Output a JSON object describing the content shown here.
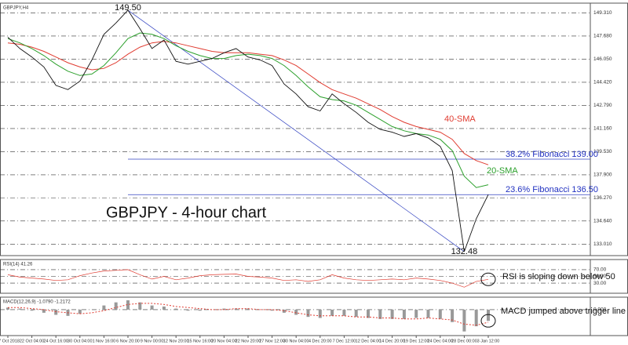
{
  "chart_data": [
    {
      "type": "line",
      "symbol": "GBPJPY,H4",
      "title": "GBPJPY - 4-hour chart",
      "peak_label": "149.50",
      "trough_label": "132.48",
      "categories": [
        "17 Oct 2018",
        null,
        "22 Oct 04:00",
        null,
        "24 Oct 16:00",
        null,
        "30 Oct 04:00",
        null,
        "1 Nov 16:00",
        null,
        "6 Nov 20:00",
        null,
        "9 Nov 00:00",
        null,
        "12 Nov 20:00",
        null,
        "15 Nov 16:00",
        null,
        "20 Nov 04:00",
        null,
        "22 Nov 20:00",
        null,
        "27 Nov 12:00",
        null,
        "30 Nov 04:00",
        null,
        "4 Dec 20:00",
        null,
        "7 Dec 12:00",
        null,
        "12 Dec 04:00",
        null,
        "14 Dec 20:00",
        null,
        "19 Dec 12:00",
        null,
        "24 Dec 04:00",
        null,
        "28 Dec 00:00",
        null,
        "3 Jan 12:00"
      ],
      "series": [
        {
          "color": "#111111",
          "values": [
            147.6,
            146.8,
            146.2,
            145.5,
            144.2,
            143.9,
            144.5,
            146.0,
            147.8,
            148.6,
            149.5,
            148.2,
            146.8,
            147.4,
            145.9,
            145.7,
            145.9,
            146.1,
            146.5,
            146.8,
            146.2,
            146.0,
            145.6,
            144.3,
            143.6,
            142.7,
            142.4,
            143.6,
            142.9,
            142.3,
            141.6,
            141.1,
            140.9,
            140.6,
            140.8,
            140.5,
            139.9,
            138.2,
            132.48,
            134.8,
            136.5
          ]
        },
        {
          "name": "20-SMA",
          "color": "#2ca02c",
          "values": [
            147.5,
            147.2,
            146.8,
            146.3,
            145.7,
            145.2,
            144.9,
            145.0,
            145.6,
            146.5,
            147.5,
            147.9,
            147.8,
            147.5,
            147.0,
            146.6,
            146.3,
            146.1,
            146.1,
            146.3,
            146.4,
            146.3,
            146.1,
            145.6,
            144.9,
            144.1,
            143.4,
            143.2,
            143.1,
            142.8,
            142.3,
            141.8,
            141.3,
            141.0,
            140.8,
            140.7,
            140.4,
            139.6,
            137.8,
            137.0,
            137.2
          ]
        },
        {
          "name": "40-SMA",
          "color": "#e03c31",
          "values": [
            147.2,
            147.1,
            146.9,
            146.6,
            146.2,
            145.8,
            145.5,
            145.3,
            145.4,
            145.8,
            146.4,
            146.9,
            147.2,
            147.3,
            147.2,
            147.0,
            146.8,
            146.6,
            146.5,
            146.5,
            146.5,
            146.4,
            146.3,
            146.0,
            145.6,
            145.0,
            144.4,
            143.9,
            143.6,
            143.3,
            142.9,
            142.5,
            142.0,
            141.6,
            141.3,
            141.1,
            140.9,
            140.4,
            139.4,
            138.9,
            138.6
          ]
        }
      ],
      "fib_levels": [
        {
          "label": "38.2% Fibonacci 139.00",
          "value": 139.0
        },
        {
          "label": "23.6% Fibonacci 136.50",
          "value": 136.5
        }
      ],
      "ylim": [
        132.2,
        150.0
      ],
      "yticks": [
        {
          "value": 149.31,
          "label": "149.310"
        },
        {
          "value": 147.68,
          "label": "147.680"
        },
        {
          "value": 146.05,
          "label": "146.050"
        },
        {
          "value": 144.42,
          "label": "144.420"
        },
        {
          "value": 142.79,
          "label": "142.790"
        },
        {
          "value": 141.16,
          "label": "141.160"
        },
        {
          "value": 139.53,
          "label": "139.530"
        },
        {
          "value": 137.9,
          "label": "137.900"
        },
        {
          "value": 136.27,
          "label": "136.270"
        },
        {
          "value": 134.64,
          "label": "134.640"
        },
        {
          "value": 133.01,
          "label": "133.010"
        }
      ],
      "grid": true
    },
    {
      "type": "line",
      "title": "RSI(14) 41.26",
      "annotation": "RSI is sloping down below 50",
      "color": "#e03c31",
      "values": [
        55,
        48,
        45,
        42,
        38,
        40,
        52,
        60,
        66,
        68,
        70,
        55,
        42,
        50,
        40,
        45,
        52,
        55,
        56,
        57,
        50,
        48,
        45,
        38,
        40,
        35,
        40,
        55,
        45,
        40,
        38,
        40,
        42,
        40,
        45,
        42,
        38,
        30,
        18,
        35,
        41.26
      ],
      "ylim": [
        0,
        100
      ],
      "yticks": [
        {
          "value": 70,
          "label": "70.00"
        },
        {
          "value": 50,
          "label": "50.00"
        },
        {
          "value": 30,
          "label": "30.00"
        }
      ],
      "grid": true
    },
    {
      "type": "bar",
      "title": "MACD(12,26,9) -1.0790 -1.2172",
      "annotation": "MACD jumped above trigger line",
      "color": "#999999",
      "signal_color": "#e03c31",
      "values": [
        0.2,
        0.1,
        -0.1,
        -0.3,
        -0.5,
        -0.6,
        -0.4,
        0,
        0.4,
        0.7,
        0.9,
        0.7,
        0.4,
        0.3,
        0.1,
        -0.1,
        -0.1,
        0,
        0.1,
        0.1,
        0.1,
        0,
        -0.1,
        -0.3,
        -0.5,
        -0.7,
        -0.8,
        -0.6,
        -0.6,
        -0.7,
        -0.8,
        -0.9,
        -0.9,
        -0.9,
        -0.8,
        -0.8,
        -0.9,
        -1.2,
        -2.1,
        -1.6,
        -1.079
      ],
      "signal_values": [
        0.2,
        0.2,
        0.1,
        0,
        -0.2,
        -0.3,
        -0.4,
        -0.3,
        -0.1,
        0.2,
        0.5,
        0.6,
        0.6,
        0.5,
        0.3,
        0.2,
        0.1,
        0,
        0,
        0.1,
        0.1,
        0,
        0,
        -0.1,
        -0.3,
        -0.5,
        -0.6,
        -0.6,
        -0.6,
        -0.7,
        -0.7,
        -0.8,
        -0.8,
        -0.9,
        -0.9,
        -0.8,
        -0.9,
        -1.0,
        -1.4,
        -1.5,
        -1.2172
      ],
      "ylim": [
        -2.5,
        1.2
      ],
      "yticks": [
        {
          "value": 0,
          "label": "0.000"
        }
      ],
      "grid": true
    }
  ]
}
